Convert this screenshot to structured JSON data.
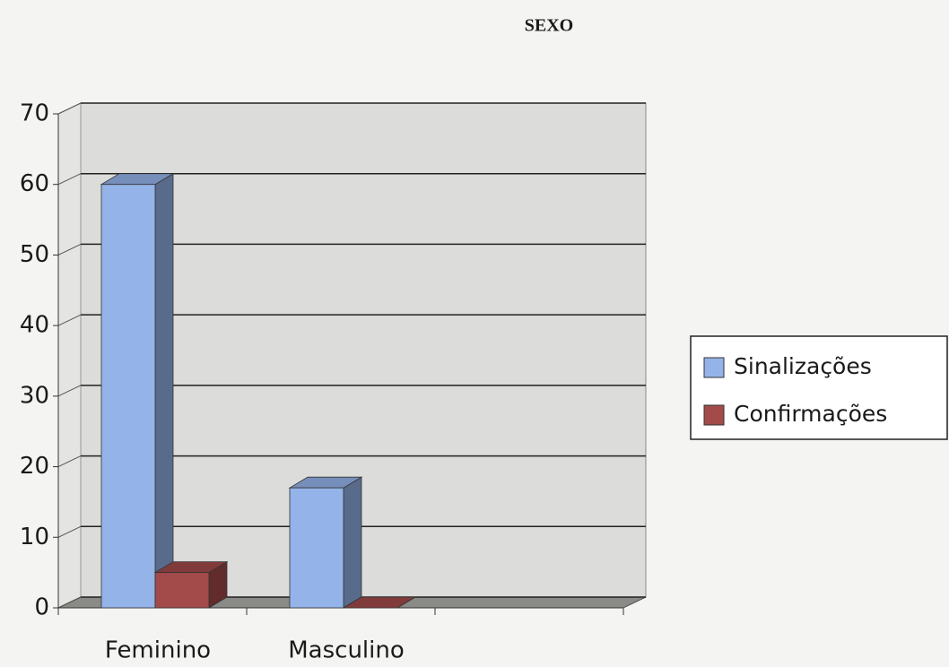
{
  "chart_data": {
    "type": "bar",
    "title": "SEXO",
    "categories": [
      "Feminino",
      "Masculino",
      null
    ],
    "series": [
      {
        "name": "Sinalizações",
        "color": "#94b3e8",
        "values": [
          60,
          17,
          null
        ]
      },
      {
        "name": "Confirmações",
        "color": "#a34a4a",
        "values": [
          5,
          0,
          null
        ]
      }
    ],
    "ylim": [
      0,
      70
    ],
    "yticks": [
      0,
      10,
      20,
      30,
      40,
      50,
      60,
      70
    ],
    "grid": true,
    "legend": "right"
  }
}
